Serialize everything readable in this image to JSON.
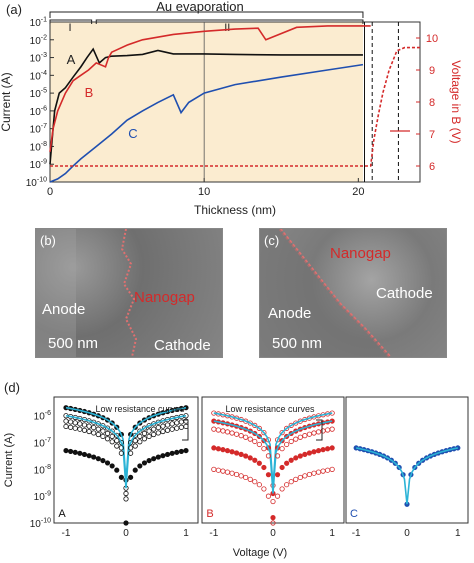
{
  "panel_labels": {
    "a": "(a)",
    "d": "(d)"
  },
  "panel_a": {
    "header": "Au evaporation",
    "phase1": "I",
    "phase2": "II",
    "xlabel": "Thickness (nm)",
    "ylabel_left": "Current (A)",
    "ylabel_right": "Voltage in B (V)",
    "x_ticks": [
      "0",
      "10",
      "20"
    ],
    "y_ticks": [
      "10-10",
      "10-9",
      "10-8",
      "10-7",
      "10-6",
      "10-5",
      "10-4",
      "10-3",
      "10-2",
      "10-1"
    ],
    "right_ticks": [
      "6",
      "7",
      "8",
      "9",
      "10"
    ],
    "curve_labels": {
      "A": "A",
      "B": "B",
      "C": "C"
    },
    "colors": {
      "A": "#111111",
      "B": "#d42a2a",
      "C": "#1f4fb0",
      "shade": "#fbecd0"
    }
  },
  "sem_b": {
    "tag": "(b)",
    "anode": "Anode",
    "cathode": "Cathode",
    "nanogap": "Nanogap",
    "scale": "500 nm"
  },
  "sem_c": {
    "tag": "(c)",
    "anode": "Anode",
    "cathode": "Cathode",
    "nanogap": "Nanogap",
    "scale": "500 nm"
  },
  "panel_d": {
    "ylabel": "Current (A)",
    "xlabel": "Voltage (V)",
    "x_ticks": [
      "-1",
      "0",
      "1"
    ],
    "y_ticks": [
      "10-10",
      "10-9",
      "10-8",
      "10-7",
      "10-6"
    ],
    "annotation_A": "Low resistance curves",
    "annotation_B": "Low resistance curves",
    "sub_labels": [
      "A",
      "B",
      "C"
    ]
  },
  "chart_data": [
    {
      "type": "line",
      "panel": "a",
      "xlabel": "Thickness (nm)",
      "ylabel": "Current (A)",
      "ylabel_right": "Voltage in B (V)",
      "xlim": [
        0,
        24
      ],
      "ylim": [
        1e-10,
        0.1
      ],
      "ylim_right": [
        5.5,
        10.5
      ],
      "yscale": "log",
      "series": [
        {
          "name": "A",
          "x": [
            0,
            0.3,
            0.6,
            1,
            1.5,
            2,
            2.4,
            2.8,
            3.2,
            3.6,
            4,
            5,
            6,
            7,
            7.5,
            8,
            10,
            12,
            15,
            18,
            20.3
          ],
          "y": [
            1e-09,
            1e-06,
            1e-05,
            2e-05,
            8e-05,
            0.0003,
            0.001,
            0.003,
            0.0005,
            0.001,
            0.0012,
            0.0013,
            0.0015,
            0.0025,
            0.002,
            0.0016,
            0.0016,
            0.0015,
            0.0014,
            0.0014,
            0.0014
          ]
        },
        {
          "name": "B",
          "x": [
            0,
            0.2,
            0.5,
            1,
            1.5,
            2,
            2.5,
            3,
            3.6,
            3.8,
            4,
            5,
            6,
            8,
            10,
            12,
            13.5,
            14,
            16,
            18,
            20,
            20.8
          ],
          "y": [
            5e-09,
            1e-07,
            1e-06,
            1e-05,
            5e-05,
            0.0001,
            0.0002,
            0.0005,
            0.0003,
            0.001,
            0.002,
            0.005,
            0.01,
            0.02,
            0.03,
            0.04,
            0.045,
            0.01,
            0.05,
            0.06,
            0.06,
            0.06
          ]
        },
        {
          "name": "C",
          "x": [
            0,
            0.5,
            1,
            1.5,
            2,
            3,
            4,
            5,
            6,
            7,
            8,
            8.5,
            9,
            10,
            12,
            15,
            18,
            20.3
          ],
          "y": [
            1e-10,
            1.5e-10,
            3e-10,
            8e-10,
            2e-09,
            1e-08,
            5e-08,
            3e-07,
            1e-06,
            3e-06,
            8e-06,
            8e-07,
            3e-06,
            1e-05,
            3e-05,
            8e-05,
            0.0002,
            0.0004
          ]
        },
        {
          "name": "B voltage",
          "axis": "right",
          "x": [
            0,
            20.8,
            21.0,
            21.3,
            21.6,
            22.0,
            22.5,
            23.0,
            24.0
          ],
          "y": [
            6.0,
            6.0,
            6.8,
            7.6,
            8.3,
            9.0,
            9.6,
            9.7,
            9.7
          ]
        }
      ]
    },
    {
      "type": "scatter",
      "panel": "d-A",
      "xlabel": "Voltage (V)",
      "ylabel": "Current (A)",
      "xlim": [
        -1.2,
        1.2
      ],
      "ylim": [
        1e-10,
        5e-06
      ],
      "yscale": "log",
      "curves_log_amplitude": [
        -5.7,
        -6.0,
        -6.2,
        -6.4,
        -7.3
      ],
      "curves_log_floor": [
        -8.6,
        -8.8,
        -9.0,
        -9.2,
        -10.0
      ],
      "fit_color": "#2bb3d6"
    },
    {
      "type": "scatter",
      "panel": "d-B",
      "xlabel": "Voltage (V)",
      "ylabel": "Current (A)",
      "xlim": [
        -1.2,
        1.2
      ],
      "ylim": [
        1e-10,
        5e-06
      ],
      "yscale": "log",
      "curves_log_amplitude": [
        -5.9,
        -6.2,
        -6.5,
        -7.2,
        -8.0
      ],
      "curves_log_floor": [
        -8.8,
        -9.1,
        -9.4,
        -9.8,
        -10.0
      ],
      "fit_color": "#2bb3d6"
    },
    {
      "type": "scatter",
      "panel": "d-C",
      "xlabel": "Voltage (V)",
      "ylabel": "Current (A)",
      "xlim": [
        -1.2,
        1.2
      ],
      "ylim": [
        1e-10,
        5e-06
      ],
      "yscale": "log",
      "curves_log_amplitude": [
        -7.2
      ],
      "curves_log_floor": [
        -9.3
      ],
      "fit_color": "#2bb3d6"
    }
  ]
}
